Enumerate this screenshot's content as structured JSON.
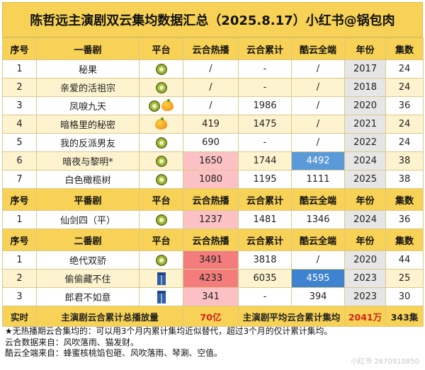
{
  "title": "陈哲远主演剧双云集均数据汇总（2025.8.17）小红书@锅包肉",
  "section1": {
    "headers": [
      "序号",
      "一番剧",
      "平台",
      "云合热播",
      "云合累计",
      "酷云全端",
      "年份",
      "集数"
    ],
    "rows": [
      {
        "no": "1",
        "name": "秘果",
        "platform": "kiwi",
        "hot": "/",
        "cum": "-",
        "kuyun": "/",
        "year": "2017",
        "eps": "24"
      },
      {
        "no": "2",
        "name": "亲爱的活祖宗",
        "platform": "kiwi",
        "hot": "/",
        "cum": "-",
        "kuyun": "/",
        "year": "2018",
        "eps": "24"
      },
      {
        "no": "3",
        "name": "凤唳九天",
        "platform": "kiwi+mango",
        "hot": "/",
        "cum": "1986",
        "kuyun": "/",
        "year": "2020",
        "eps": "36"
      },
      {
        "no": "4",
        "name": "暗格里的秘密",
        "platform": "mango",
        "hot": "419",
        "cum": "1475",
        "kuyun": "/",
        "year": "2021",
        "eps": "24"
      },
      {
        "no": "5",
        "name": "我的反派男友",
        "platform": "kiwi",
        "hot": "690",
        "cum": "-",
        "kuyun": "/",
        "year": "2022",
        "eps": "24"
      },
      {
        "no": "6",
        "name": "暗夜与黎明*",
        "platform": "kiwi",
        "hot": "1650",
        "cum": "1744",
        "kuyun": "4492",
        "year": "2024",
        "eps": "38"
      },
      {
        "no": "7",
        "name": "白色橄榄树",
        "platform": "kiwi",
        "hot": "1080",
        "cum": "1195",
        "kuyun": "1111",
        "year": "2025",
        "eps": "38"
      }
    ]
  },
  "section2": {
    "headers": [
      "序号",
      "平番剧",
      "平台",
      "云合热播",
      "云合累计",
      "酷云全端",
      "年份",
      "集数"
    ],
    "rows": [
      {
        "no": "1",
        "name": "仙剑四（平）",
        "platform": "kiwi",
        "hot": "1237",
        "cum": "1481",
        "kuyun": "1346",
        "year": "2024",
        "eps": "36"
      }
    ]
  },
  "section3": {
    "headers": [
      "序号",
      "二番剧",
      "平台",
      "云合热播",
      "云合累计",
      "酷云全端",
      "年份",
      "集数"
    ],
    "rows": [
      {
        "no": "1",
        "name": "绝代双骄",
        "platform": "kiwi",
        "hot": "3491",
        "cum": "3818",
        "kuyun": "/",
        "year": "2020",
        "eps": "44"
      },
      {
        "no": "2",
        "name": "偷偷藏不住",
        "platform": "pants",
        "hot": "4233",
        "cum": "6035",
        "kuyun": "4595",
        "year": "2023",
        "eps": "25"
      },
      {
        "no": "3",
        "name": "郎君不如意",
        "platform": "pants",
        "hot": "341",
        "cum": "-",
        "kuyun": "394",
        "year": "2023",
        "eps": "30"
      }
    ]
  },
  "summary": {
    "label1": "实时",
    "label2": "主演剧云合累计总播放量",
    "value2": "70亿",
    "label3": "主演剧平均云合累计集均",
    "value3": "2041万",
    "value4": "343集"
  },
  "notes": [
    "★无热播期云合集均的：可以用3个月内累计集均近似替代，超过3个月的仅计累计集均。",
    "云合数据来自：风吹落雨、猫发财。",
    "酷云全端来自：蜂蜜核桃馅包砸、风吹落雨、琴涮、空值。"
  ],
  "watermark": "小红书 2670910850"
}
